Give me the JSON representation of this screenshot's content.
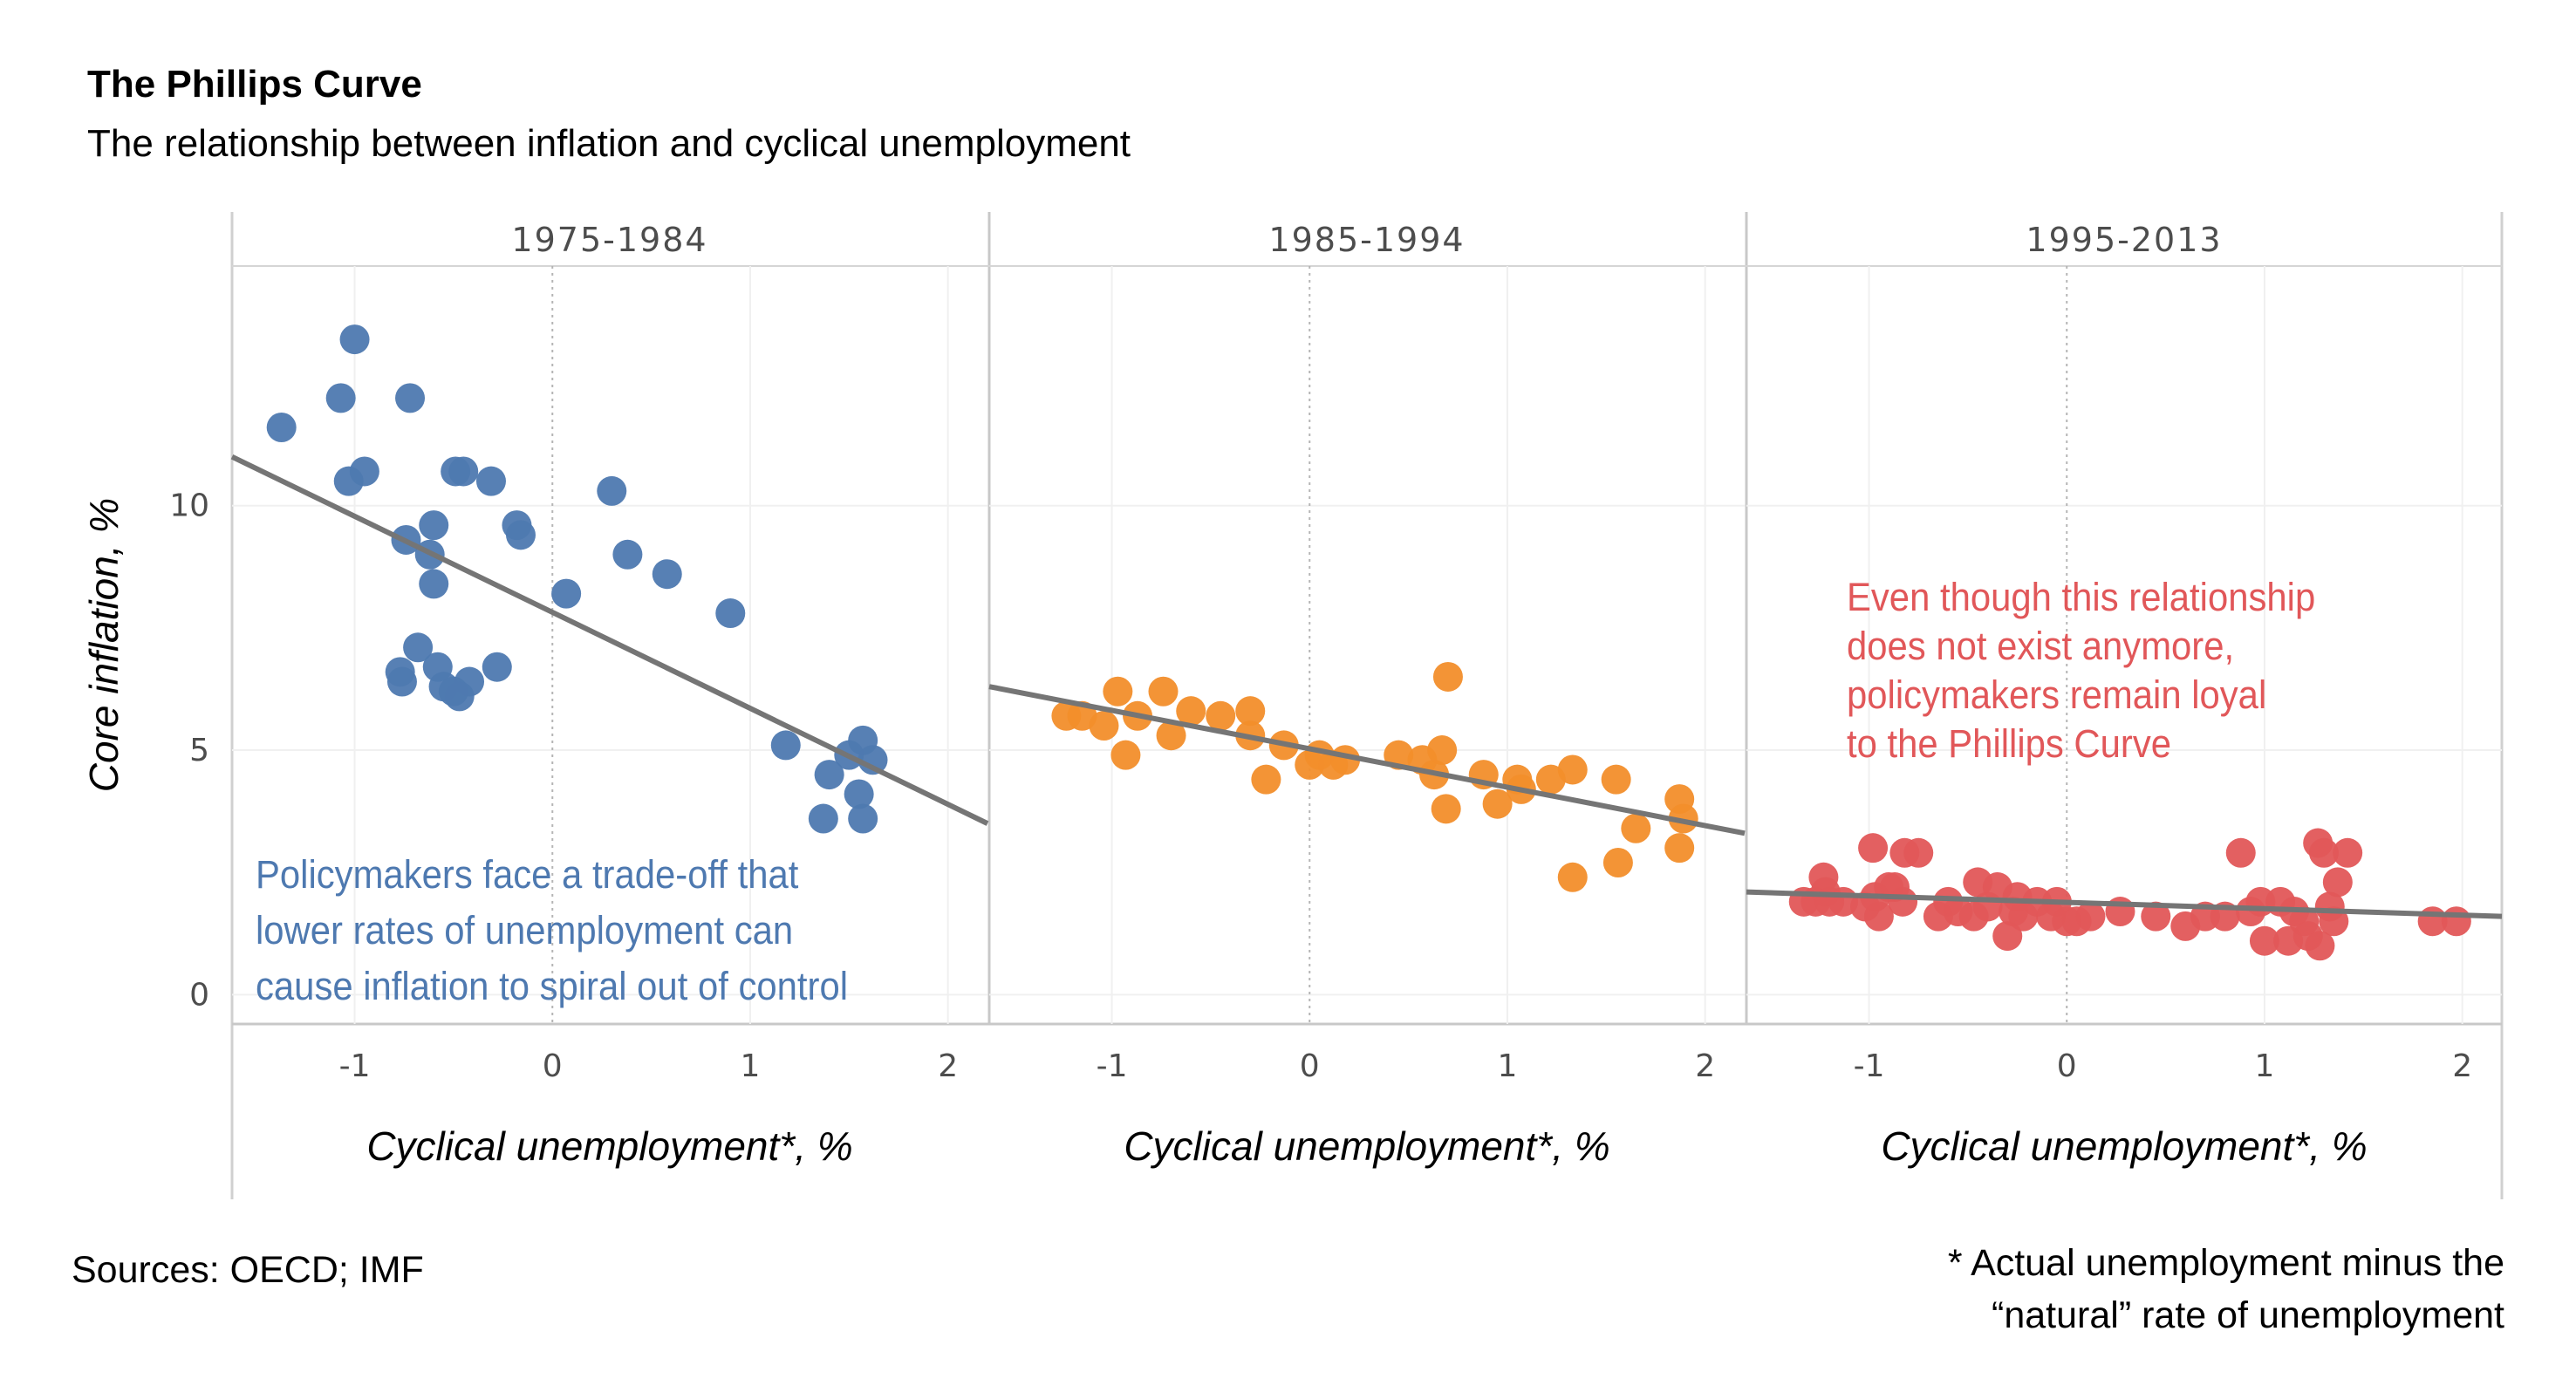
{
  "title": "The Phillips Curve",
  "subtitle": "The relationship between inflation and cyclical unemployment",
  "sources": "Sources: OECD; IMF",
  "footnote": [
    "* Actual unemployment minus the",
    "“natural” rate of unemployment"
  ],
  "chart_data": {
    "type": "scatter",
    "ylabel": "Core inflation, %",
    "xlabel": "Cyclical unemployment*, %",
    "xlim": [
      -1.62,
      2.2
    ],
    "ylim": [
      -0.6,
      14.9
    ],
    "xticks": [
      -1,
      0,
      1,
      2
    ],
    "xtick_labels": [
      "-1",
      "0",
      "1",
      "2"
    ],
    "yticks": [
      0,
      5,
      10
    ],
    "ytick_labels": [
      "0",
      "5",
      "10"
    ],
    "grid": true,
    "zero_line": "dotted",
    "panels": [
      {
        "name": "1975-1984",
        "color": "#4E79B0",
        "trend": [
          [
            -1.62,
            11.0
          ],
          [
            2.2,
            3.5
          ]
        ],
        "annotation": [
          "Policymakers face a trade-off that",
          "lower rates of unemployment can",
          "cause inflation to spiral out of control"
        ],
        "points": [
          [
            -1.37,
            11.6
          ],
          [
            -1.0,
            13.4
          ],
          [
            -1.07,
            12.2
          ],
          [
            -0.72,
            12.2
          ],
          [
            -1.03,
            10.5
          ],
          [
            -0.95,
            10.7
          ],
          [
            -0.49,
            10.7
          ],
          [
            -0.45,
            10.7
          ],
          [
            -0.31,
            10.5
          ],
          [
            0.3,
            10.3
          ],
          [
            -0.6,
            9.6
          ],
          [
            -0.18,
            9.6
          ],
          [
            -0.16,
            9.4
          ],
          [
            -0.74,
            9.3
          ],
          [
            -0.62,
            9.0
          ],
          [
            0.38,
            9.0
          ],
          [
            0.58,
            8.6
          ],
          [
            -0.6,
            8.4
          ],
          [
            0.07,
            8.2
          ],
          [
            0.9,
            7.8
          ],
          [
            -0.68,
            7.1
          ],
          [
            -0.77,
            6.6
          ],
          [
            -0.76,
            6.4
          ],
          [
            -0.58,
            6.7
          ],
          [
            -0.55,
            6.3
          ],
          [
            -0.5,
            6.2
          ],
          [
            -0.42,
            6.4
          ],
          [
            -0.47,
            6.1
          ],
          [
            -0.28,
            6.7
          ],
          [
            1.18,
            5.1
          ],
          [
            1.57,
            5.2
          ],
          [
            1.5,
            4.9
          ],
          [
            1.62,
            4.8
          ],
          [
            1.4,
            4.5
          ],
          [
            1.55,
            4.1
          ],
          [
            1.37,
            3.6
          ],
          [
            1.57,
            3.6
          ]
        ]
      },
      {
        "name": "1985-1994",
        "color": "#F28E2B",
        "trend": [
          [
            -1.62,
            6.3
          ],
          [
            2.2,
            3.3
          ]
        ],
        "annotation": [],
        "points": [
          [
            -1.23,
            5.7
          ],
          [
            -1.15,
            5.7
          ],
          [
            -1.04,
            5.5
          ],
          [
            -0.97,
            6.2
          ],
          [
            -0.93,
            4.9
          ],
          [
            -0.87,
            5.7
          ],
          [
            -0.74,
            6.2
          ],
          [
            -0.7,
            5.3
          ],
          [
            -0.6,
            5.8
          ],
          [
            -0.45,
            5.7
          ],
          [
            -0.3,
            5.8
          ],
          [
            -0.3,
            5.3
          ],
          [
            -0.22,
            4.4
          ],
          [
            -0.13,
            5.1
          ],
          [
            0.0,
            4.7
          ],
          [
            0.05,
            4.9
          ],
          [
            0.12,
            4.7
          ],
          [
            0.18,
            4.8
          ],
          [
            0.45,
            4.9
          ],
          [
            0.57,
            4.8
          ],
          [
            0.63,
            4.5
          ],
          [
            0.67,
            5.0
          ],
          [
            0.69,
            3.8
          ],
          [
            0.7,
            6.5
          ],
          [
            0.88,
            4.5
          ],
          [
            0.95,
            3.9
          ],
          [
            1.05,
            4.4
          ],
          [
            1.07,
            4.2
          ],
          [
            1.22,
            4.4
          ],
          [
            1.33,
            4.6
          ],
          [
            1.33,
            2.4
          ],
          [
            1.55,
            4.4
          ],
          [
            1.56,
            2.7
          ],
          [
            1.65,
            3.4
          ],
          [
            1.87,
            4.0
          ],
          [
            1.89,
            3.6
          ],
          [
            1.87,
            3.0
          ]
        ]
      },
      {
        "name": "1995-2013",
        "color": "#E15759",
        "trend": [
          [
            -1.62,
            2.1
          ],
          [
            2.2,
            1.6
          ]
        ],
        "annotation": [
          "Even though this relationship",
          "does not exist anymore,",
          "policymakers remain loyal",
          "to the Phillips Curve"
        ],
        "points": [
          [
            -1.33,
            1.9
          ],
          [
            -1.27,
            1.9
          ],
          [
            -1.23,
            2.4
          ],
          [
            -1.22,
            2.1
          ],
          [
            -1.2,
            1.9
          ],
          [
            -1.13,
            1.9
          ],
          [
            -1.02,
            1.8
          ],
          [
            -0.97,
            2.0
          ],
          [
            -0.95,
            1.6
          ],
          [
            -0.9,
            2.2
          ],
          [
            -0.87,
            2.2
          ],
          [
            -0.83,
            1.9
          ],
          [
            -0.98,
            3.0
          ],
          [
            -0.82,
            2.9
          ],
          [
            -0.75,
            2.9
          ],
          [
            -0.65,
            1.6
          ],
          [
            -0.6,
            1.9
          ],
          [
            -0.55,
            1.7
          ],
          [
            -0.47,
            1.6
          ],
          [
            -0.45,
            2.3
          ],
          [
            -0.4,
            1.8
          ],
          [
            -0.35,
            2.2
          ],
          [
            -0.3,
            1.2
          ],
          [
            -0.27,
            1.7
          ],
          [
            -0.25,
            2.0
          ],
          [
            -0.22,
            1.6
          ],
          [
            -0.15,
            1.9
          ],
          [
            -0.08,
            1.6
          ],
          [
            -0.05,
            1.9
          ],
          [
            0.0,
            1.5
          ],
          [
            0.05,
            1.5
          ],
          [
            0.12,
            1.6
          ],
          [
            0.27,
            1.7
          ],
          [
            0.45,
            1.6
          ],
          [
            0.6,
            1.4
          ],
          [
            0.7,
            1.6
          ],
          [
            0.8,
            1.6
          ],
          [
            0.88,
            2.9
          ],
          [
            0.93,
            1.7
          ],
          [
            0.98,
            1.9
          ],
          [
            1.0,
            1.1
          ],
          [
            1.08,
            1.9
          ],
          [
            1.12,
            1.1
          ],
          [
            1.15,
            1.7
          ],
          [
            1.2,
            1.5
          ],
          [
            1.22,
            1.2
          ],
          [
            1.27,
            3.1
          ],
          [
            1.28,
            1.0
          ],
          [
            1.3,
            2.9
          ],
          [
            1.33,
            1.8
          ],
          [
            1.35,
            1.5
          ],
          [
            1.37,
            2.3
          ],
          [
            1.42,
            2.9
          ],
          [
            1.85,
            1.5
          ],
          [
            1.97,
            1.5
          ]
        ]
      }
    ]
  }
}
